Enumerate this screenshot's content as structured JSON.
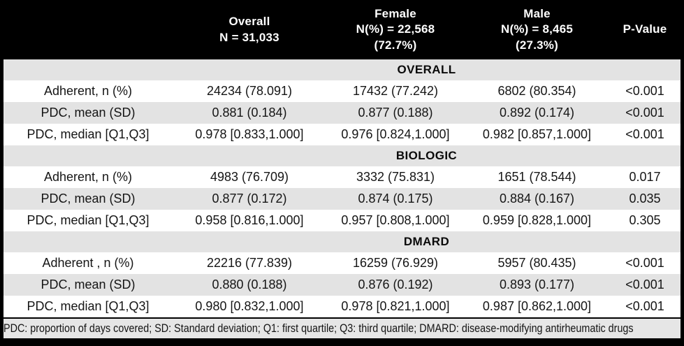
{
  "colors": {
    "header_bg": "#000000",
    "header_text": "#ffffff",
    "stripe_gray": "#e3e3e3",
    "row_white": "#ffffff",
    "text": "#111111"
  },
  "chart_data": {
    "type": "table",
    "header": {
      "columns": [
        {
          "label": ""
        },
        {
          "line1": "Overall",
          "line2": "N = 31,033"
        },
        {
          "line1": "Female",
          "line2": "N(%) = 22,568",
          "line3": "(72.7%)"
        },
        {
          "line1": "Male",
          "line2": "N(%) = 8,465",
          "line3": "(27.3%)"
        },
        {
          "line1": "P-Value"
        }
      ]
    },
    "sections": [
      {
        "title": "OVERALL",
        "rows": [
          {
            "label": "Adherent, n (%)",
            "overall": "24234 (78.091)",
            "female": "17432 (77.242)",
            "male": "6802 (80.354)",
            "p": "<0.001"
          },
          {
            "label": "PDC, mean (SD)",
            "overall": "0.881 (0.184)",
            "female": "0.877 (0.188)",
            "male": "0.892 (0.174)",
            "p": "<0.001"
          },
          {
            "label": "PDC, median [Q1,Q3]",
            "overall": "0.978 [0.833,1.000]",
            "female": "0.976 [0.824,1.000]",
            "male": "0.982 [0.857,1.000]",
            "p": "<0.001"
          }
        ]
      },
      {
        "title": "BIOLOGIC",
        "rows": [
          {
            "label": "Adherent, n (%)",
            "overall": "4983 (76.709)",
            "female": "3332 (75.831)",
            "male": "1651 (78.544)",
            "p": "0.017"
          },
          {
            "label": "PDC, mean (SD)",
            "overall": "0.877 (0.172)",
            "female": "0.874 (0.175)",
            "male": "0.884 (0.167)",
            "p": "0.035"
          },
          {
            "label": "PDC, median [Q1,Q3]",
            "overall": "0.958 [0.816,1.000]",
            "female": "0.957 [0.808,1.000]",
            "male": "0.959 [0.828,1.000]",
            "p": "0.305"
          }
        ]
      },
      {
        "title": "DMARD",
        "rows": [
          {
            "label": "Adherent , n (%)",
            "overall": "22216 (77.839)",
            "female": "16259 (76.929)",
            "male": "5957 (80.435)",
            "p": "<0.001"
          },
          {
            "label": "PDC, mean (SD)",
            "overall": "0.880 (0.188)",
            "female": "0.876 (0.192)",
            "male": "0.893 (0.177)",
            "p": "<0.001"
          },
          {
            "label": "PDC, median [Q1,Q3]",
            "overall": "0.980 [0.832,1.000]",
            "female": "0.978 [0.821,1.000]",
            "male": "0.987 [0.862,1.000]",
            "p": "<0.001"
          }
        ]
      }
    ],
    "footnote": "PDC: proportion of days covered; SD: Standard deviation; Q1: first quartile; Q3: third quartile; DMARD: disease-modifying antirheumatic drugs"
  }
}
